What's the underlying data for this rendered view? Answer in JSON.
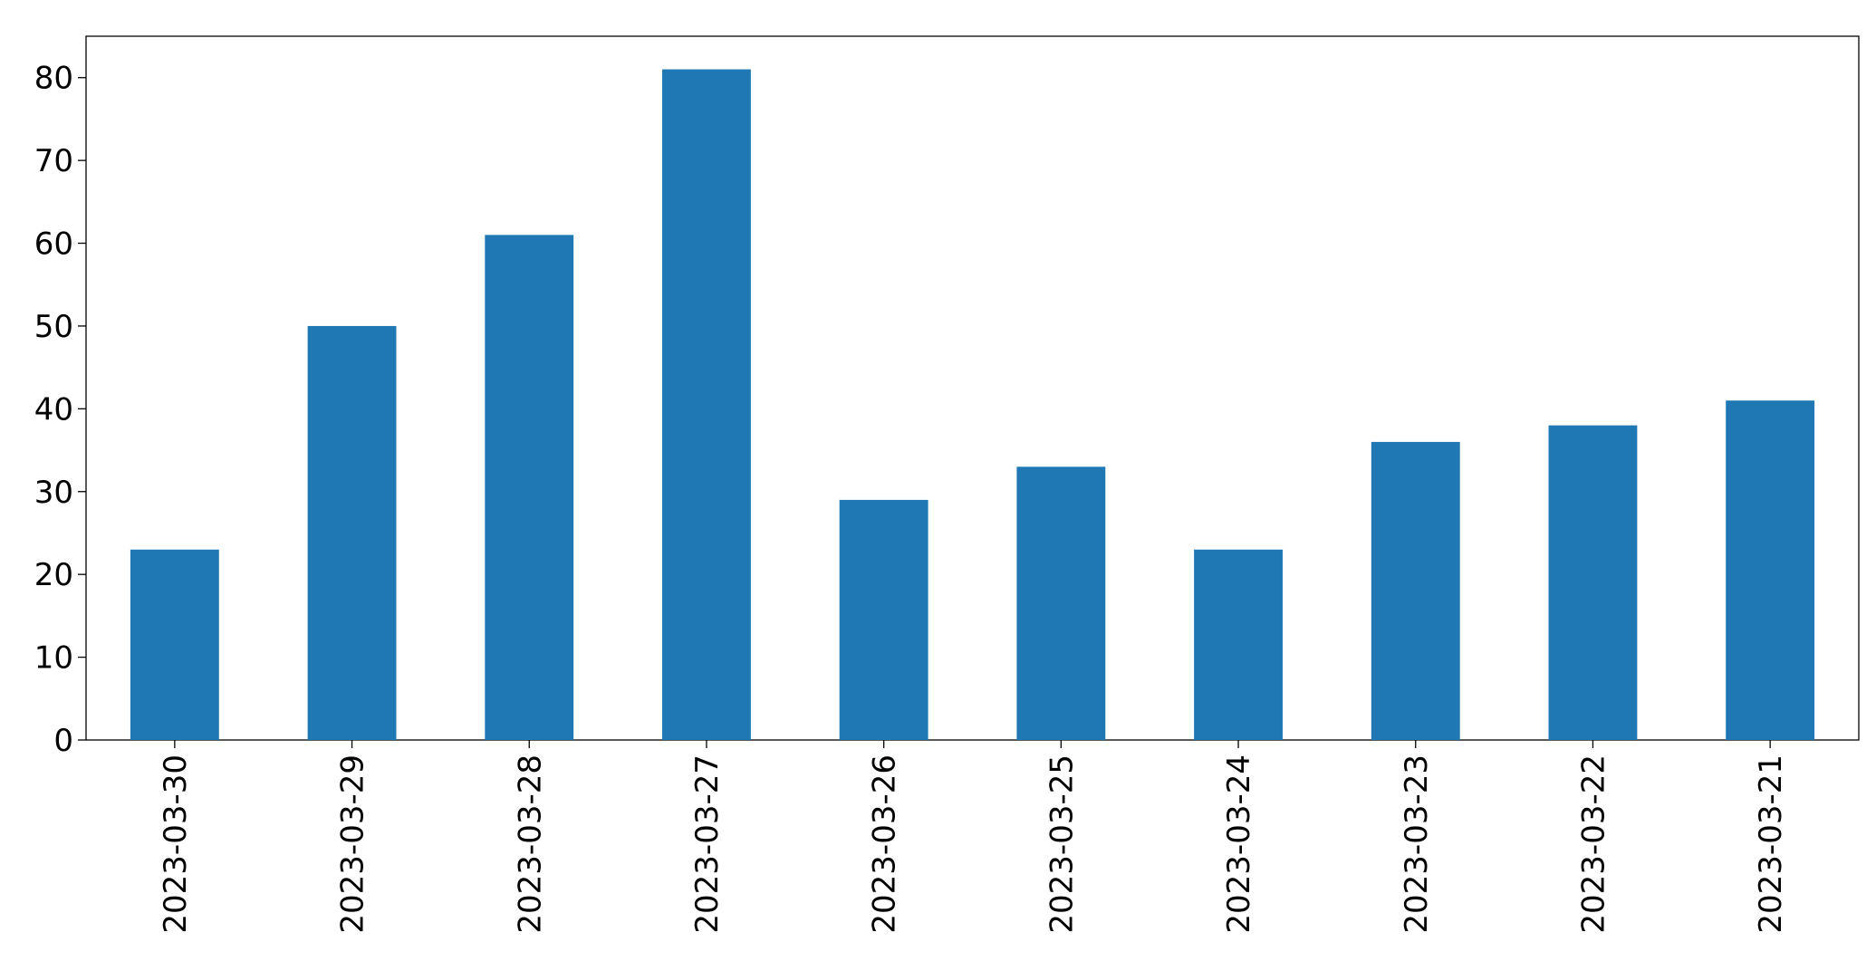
{
  "chart_data": {
    "type": "bar",
    "categories": [
      "2023-03-30",
      "2023-03-29",
      "2023-03-28",
      "2023-03-27",
      "2023-03-26",
      "2023-03-25",
      "2023-03-24",
      "2023-03-23",
      "2023-03-22",
      "2023-03-21"
    ],
    "values": [
      23,
      50,
      61,
      81,
      29,
      33,
      23,
      36,
      38,
      41
    ],
    "color": "#1f77b4",
    "ylim": [
      0,
      85
    ],
    "yticks": [
      0,
      10,
      20,
      30,
      40,
      50,
      60,
      70,
      80
    ],
    "grid": false
  }
}
